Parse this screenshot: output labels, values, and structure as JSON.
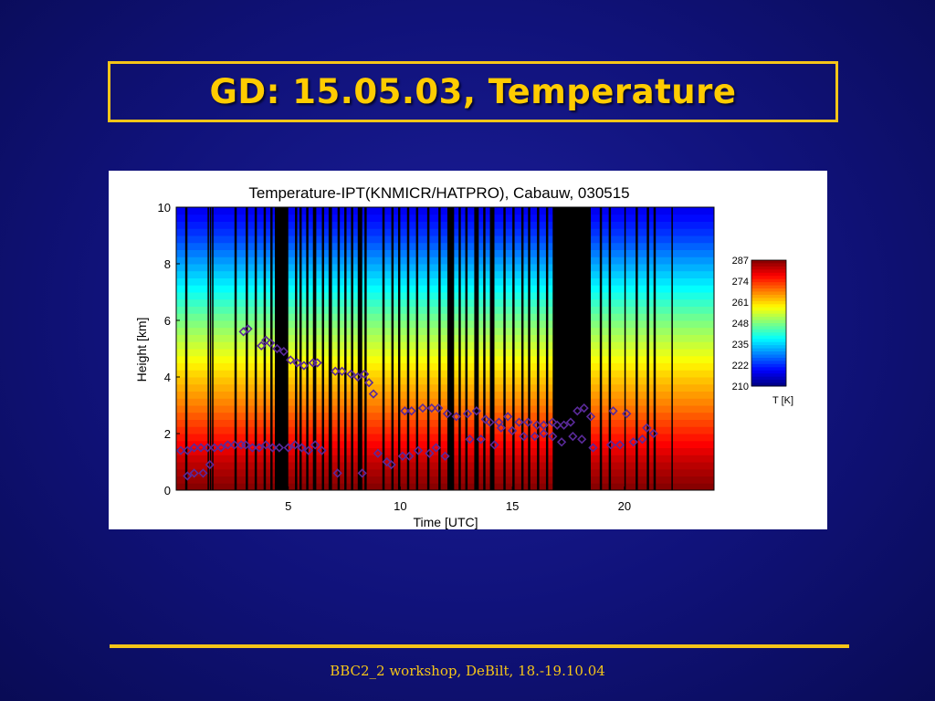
{
  "slide": {
    "title": "GD: 15.05.03, Temperature",
    "footer": "BBC2_2 workshop, DeBilt, 18.-19.10.04"
  },
  "colors": {
    "background": "#10127a",
    "accent": "#f5c518",
    "title": "#ffcc00",
    "marker": "#5a2a9a",
    "no_data": "#000000"
  },
  "chart_data": {
    "type": "heatmap",
    "title": "Temperature-IPT(KNMICR/HATPRO), Cabauw, 030515",
    "xlabel": "Time [UTC]",
    "ylabel": "Height [km]",
    "xlim": [
      0,
      24
    ],
    "ylim": [
      0,
      10
    ],
    "xticks": [
      5,
      10,
      15,
      20
    ],
    "yticks": [
      0,
      2,
      4,
      6,
      8,
      10
    ],
    "grid": false,
    "colorbar": {
      "label": "T [K]",
      "ticks": [
        287,
        274,
        261,
        248,
        235,
        222,
        210
      ],
      "range": [
        210,
        287
      ],
      "colormap": "jet"
    },
    "temperature_profile": {
      "height_km": [
        0,
        1,
        2,
        3,
        4,
        5,
        6,
        7,
        8,
        9,
        10
      ],
      "temperature_K": [
        287,
        282,
        275,
        268,
        262,
        255,
        248,
        240,
        232,
        224,
        218
      ]
    },
    "no_data_intervals_utc": [
      [
        0.4,
        0.5
      ],
      [
        1.4,
        1.45
      ],
      [
        1.5,
        1.55
      ],
      [
        1.6,
        1.65
      ],
      [
        2.6,
        2.7
      ],
      [
        3.1,
        3.2
      ],
      [
        3.5,
        3.6
      ],
      [
        3.9,
        4.0
      ],
      [
        4.2,
        4.3
      ],
      [
        4.4,
        5.0
      ],
      [
        5.3,
        5.4
      ],
      [
        5.5,
        5.6
      ],
      [
        5.8,
        5.9
      ],
      [
        6.1,
        6.25
      ],
      [
        6.5,
        6.6
      ],
      [
        6.8,
        6.95
      ],
      [
        7.2,
        7.3
      ],
      [
        7.5,
        7.6
      ],
      [
        7.8,
        7.9
      ],
      [
        8.1,
        8.3
      ],
      [
        8.4,
        8.5
      ],
      [
        9.2,
        9.3
      ],
      [
        9.6,
        9.7
      ],
      [
        9.9,
        10.0
      ],
      [
        10.3,
        10.4
      ],
      [
        10.7,
        10.8
      ],
      [
        11.2,
        11.3
      ],
      [
        11.7,
        11.8
      ],
      [
        12.1,
        12.4
      ],
      [
        12.6,
        12.7
      ],
      [
        12.9,
        13.0
      ],
      [
        13.3,
        13.5
      ],
      [
        13.7,
        13.8
      ],
      [
        14.0,
        14.2
      ],
      [
        14.6,
        14.7
      ],
      [
        15.0,
        15.1
      ],
      [
        15.4,
        15.5
      ],
      [
        15.7,
        15.8
      ],
      [
        16.1,
        16.2
      ],
      [
        16.5,
        16.6
      ],
      [
        16.8,
        18.5
      ],
      [
        18.9,
        19.0
      ],
      [
        19.3,
        19.4
      ],
      [
        20.0,
        20.05
      ],
      [
        20.5,
        20.6
      ],
      [
        21.0,
        21.1
      ],
      [
        21.3,
        21.4
      ],
      [
        22.1,
        22.15
      ]
    ],
    "marker_series": [
      {
        "x": [
          0.2,
          0.5,
          0.8,
          1.1,
          1.4,
          1.7,
          2.0,
          2.3,
          2.6,
          2.9,
          3.1,
          3.4,
          3.7,
          4.0,
          4.3,
          4.6,
          5.0,
          5.3,
          5.6,
          5.9,
          6.2,
          6.5,
          7.2,
          8.3,
          9.0,
          9.4,
          9.6,
          10.1,
          10.4,
          10.8,
          11.3,
          11.6,
          12.0,
          13.1,
          13.6,
          14.2,
          14.5,
          15.0,
          15.5,
          16.0,
          16.4,
          16.8,
          17.2,
          17.7,
          18.1,
          18.6,
          19.4,
          19.8,
          20.4,
          20.8,
          21.3
        ],
        "y": [
          1.4,
          1.4,
          1.5,
          1.5,
          1.5,
          1.5,
          1.5,
          1.6,
          1.6,
          1.6,
          1.6,
          1.5,
          1.5,
          1.6,
          1.5,
          1.5,
          1.5,
          1.6,
          1.5,
          1.4,
          1.6,
          1.4,
          0.6,
          0.6,
          1.3,
          1.0,
          0.9,
          1.2,
          1.2,
          1.4,
          1.3,
          1.5,
          1.2,
          1.8,
          1.8,
          1.6,
          2.2,
          2.1,
          1.9,
          1.9,
          2.0,
          1.9,
          1.7,
          1.9,
          1.8,
          1.5,
          1.6,
          1.6,
          1.7,
          1.8,
          2.0
        ]
      },
      {
        "x": [
          0.5,
          0.8,
          1.2,
          1.5,
          3.0,
          3.2,
          3.8,
          4.0,
          4.2,
          4.5,
          4.8,
          5.1,
          5.4,
          5.7,
          6.1,
          6.3,
          7.1,
          7.4,
          7.8,
          8.1,
          8.4,
          8.6,
          8.8,
          10.2,
          10.5,
          11.0,
          11.4,
          11.7,
          12.1,
          12.5,
          13.0,
          13.4,
          13.8,
          14.0,
          14.4,
          14.8,
          15.3,
          15.7,
          16.1,
          16.4,
          16.8,
          17.0,
          17.3,
          17.6,
          17.9,
          18.2,
          18.5,
          19.5,
          20.1,
          21.0
        ],
        "y": [
          0.5,
          0.6,
          0.6,
          0.9,
          5.6,
          5.7,
          5.1,
          5.3,
          5.2,
          5.0,
          4.9,
          4.6,
          4.5,
          4.4,
          4.5,
          4.5,
          4.2,
          4.2,
          4.1,
          4.0,
          4.1,
          3.8,
          3.4,
          2.8,
          2.8,
          2.9,
          2.9,
          2.9,
          2.7,
          2.6,
          2.7,
          2.8,
          2.5,
          2.4,
          2.4,
          2.6,
          2.4,
          2.4,
          2.3,
          2.3,
          2.4,
          2.3,
          2.3,
          2.4,
          2.8,
          2.9,
          2.6,
          2.8,
          2.7,
          2.2
        ]
      }
    ]
  }
}
